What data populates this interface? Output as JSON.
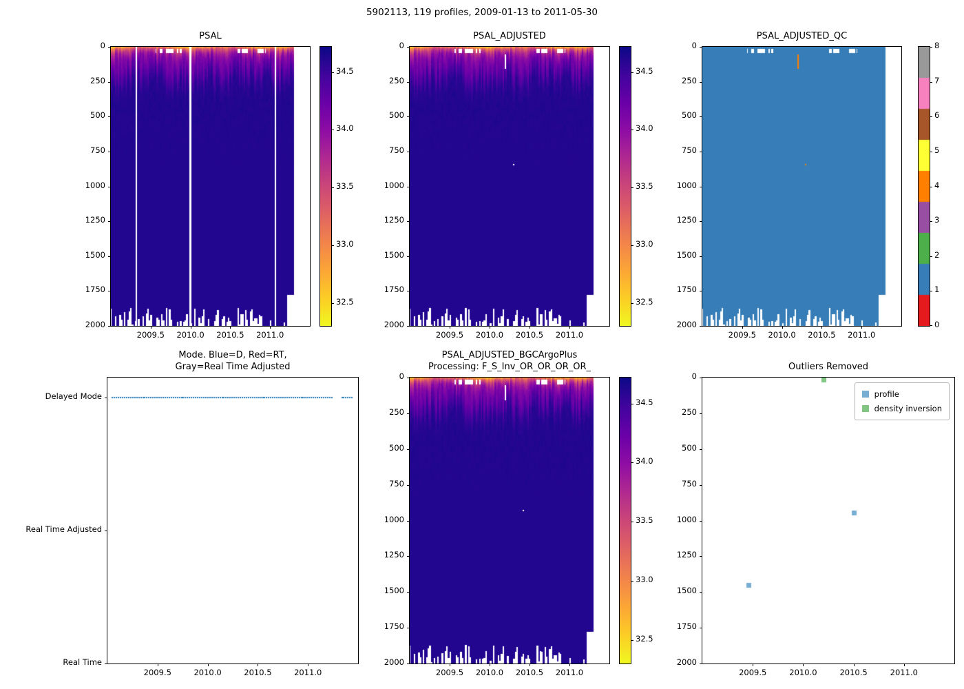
{
  "figure": {
    "title": "5902113, 119 profiles, 2009-01-13 to 2011-05-30",
    "platform_id": "5902113",
    "n_profiles": 119,
    "date_start": "2009-01-13",
    "date_end": "2011-05-30",
    "background_color": "#ffffff"
  },
  "colormaps": {
    "plasma": [
      [
        0.0,
        "#0d0887"
      ],
      [
        0.1,
        "#41049d"
      ],
      [
        0.2,
        "#6a00a8"
      ],
      [
        0.3,
        "#8f0da4"
      ],
      [
        0.4,
        "#b12a90"
      ],
      [
        0.5,
        "#cc4778"
      ],
      [
        0.6,
        "#e16462"
      ],
      [
        0.7,
        "#f2844b"
      ],
      [
        0.8,
        "#fca636"
      ],
      [
        0.9,
        "#fcce25"
      ],
      [
        1.0,
        "#f0f921"
      ]
    ],
    "qc_set1": [
      "#e41a1c",
      "#377eb8",
      "#4daf4a",
      "#984ea3",
      "#ff7f00",
      "#ffff33",
      "#a65628",
      "#f781bf",
      "#999999"
    ]
  },
  "chart_data": [
    {
      "id": "psal",
      "type": "heatmap",
      "title": "PSAL",
      "x_range": [
        2009.0,
        2011.5
      ],
      "x_tick_values": [
        2009.5,
        2010.0,
        2010.5,
        2011.0
      ],
      "x_tick_labels": [
        "2009.5",
        "2010.0",
        "2010.5",
        "2011.0"
      ],
      "y_range": [
        0,
        2000
      ],
      "y_tick_values": [
        0,
        250,
        500,
        750,
        1000,
        1250,
        1500,
        1750,
        2000
      ],
      "y_axis_reversed": true,
      "n_profiles": 119,
      "x_data_end": 2011.3,
      "colorbar": {
        "vmin": 32.3,
        "vmax": 34.72,
        "tick_values": [
          32.5,
          33.0,
          33.5,
          34.0,
          34.5
        ],
        "tick_labels": [
          "32.5",
          "33.0",
          "33.5",
          "34.0",
          "34.5"
        ],
        "colormap": "plasma_r"
      },
      "field_model": {
        "deep_value": 34.62,
        "mid_value": 34.15,
        "surface_value_range": [
          32.42,
          33.45
        ],
        "mixed_layer_depth_range": [
          18,
          55
        ],
        "halocline_depth_range": [
          90,
          280
        ]
      },
      "missing_profile_times": [
        2009.32,
        2010.0,
        2011.07
      ],
      "surface_gap_time_ranges": [
        [
          2009.56,
          2009.92
        ],
        [
          2010.56,
          2010.95
        ]
      ],
      "profile_end_depth_range": [
        1870,
        2000
      ],
      "shallow_end": {
        "time_range": [
          2011.22,
          2011.3
        ],
        "end_depth": 1780
      }
    },
    {
      "id": "psal_adjusted",
      "type": "heatmap",
      "title": "PSAL_ADJUSTED",
      "x_range": [
        2009.0,
        2011.5
      ],
      "x_tick_values": [
        2009.5,
        2010.0,
        2010.5,
        2011.0
      ],
      "x_tick_labels": [
        "2009.5",
        "2010.0",
        "2010.5",
        "2011.0"
      ],
      "y_range": [
        0,
        2000
      ],
      "y_tick_values": [
        0,
        250,
        500,
        750,
        1000,
        1250,
        1500,
        1750,
        2000
      ],
      "y_axis_reversed": true,
      "n_profiles": 119,
      "x_data_end": 2011.3,
      "colorbar": {
        "vmin": 32.3,
        "vmax": 34.72,
        "tick_values": [
          32.5,
          33.0,
          33.5,
          34.0,
          34.5
        ],
        "tick_labels": [
          "32.5",
          "33.0",
          "33.5",
          "34.0",
          "34.5"
        ],
        "colormap": "plasma_r"
      },
      "field_model": {
        "deep_value": 34.62,
        "mid_value": 34.15,
        "surface_value_range": [
          32.42,
          33.45
        ],
        "mixed_layer_depth_range": [
          18,
          55
        ],
        "halocline_depth_range": [
          90,
          280
        ]
      },
      "surface_gap_time_ranges": [
        [
          2009.56,
          2009.92
        ],
        [
          2010.56,
          2010.95
        ]
      ],
      "profile_end_depth_range": [
        1870,
        2000
      ],
      "shallow_end": {
        "time_range": [
          2011.22,
          2011.3
        ],
        "end_depth": 1780
      },
      "marks": [
        {
          "kind": "bar",
          "color": "#ffffff",
          "t": 2010.2,
          "d0": 55,
          "d1": 160,
          "meaning": "masked adjusted values"
        },
        {
          "kind": "dot",
          "color": "#ffffff",
          "t": 2010.3,
          "d": 845,
          "meaning": "masked adjusted value"
        }
      ]
    },
    {
      "id": "psal_adjusted_qc",
      "type": "heatmap",
      "title": "PSAL_ADJUSTED_QC",
      "x_range": [
        2009.0,
        2011.5
      ],
      "x_tick_values": [
        2009.5,
        2010.0,
        2010.5,
        2011.0
      ],
      "x_tick_labels": [
        "2009.5",
        "2010.0",
        "2010.5",
        "2011.0"
      ],
      "y_range": [
        0,
        2000
      ],
      "y_tick_values": [
        0,
        250,
        500,
        750,
        1000,
        1250,
        1500,
        1750,
        2000
      ],
      "y_axis_reversed": true,
      "n_profiles": 119,
      "x_data_end": 2011.3,
      "fill_value": 1,
      "fill_color": "#377eb8",
      "colorbar": {
        "categorical": true,
        "tick_values": [
          0,
          1,
          2,
          3,
          4,
          5,
          6,
          7,
          8
        ],
        "tick_labels": [
          "0",
          "1",
          "2",
          "3",
          "4",
          "5",
          "6",
          "7",
          "8"
        ]
      },
      "surface_gap_time_ranges": [
        [
          2009.56,
          2009.92
        ],
        [
          2010.56,
          2010.95
        ]
      ],
      "profile_end_depth_range": [
        1870,
        2000
      ],
      "shallow_end": {
        "time_range": [
          2011.22,
          2011.3
        ],
        "end_depth": 1780
      },
      "marks": [
        {
          "kind": "bar",
          "color": "#ff7f00",
          "value": 4,
          "t": 2010.2,
          "d0": 55,
          "d1": 160,
          "meaning": "QC flag 4"
        },
        {
          "kind": "dot",
          "color": "#ff7f00",
          "value": 4,
          "t": 2010.3,
          "d": 845,
          "meaning": "QC flag 4"
        }
      ]
    },
    {
      "id": "mode",
      "type": "scatter",
      "title_lines": [
        "Mode. Blue=D, Red=RT,",
        "Gray=Real Time Adjusted"
      ],
      "x_range": [
        2009.0,
        2011.5
      ],
      "x_tick_values": [
        2009.5,
        2010.0,
        2010.5,
        2011.0
      ],
      "x_tick_labels": [
        "2009.5",
        "2010.0",
        "2010.5",
        "2011.0"
      ],
      "y_categories": [
        "Delayed Mode",
        "Real Time Adjusted",
        "Real Time"
      ],
      "y_category_values": [
        2,
        1,
        0
      ],
      "y_lim": [
        0,
        2.15
      ],
      "series": [
        {
          "name": "mode",
          "color": "#1f77b4",
          "value": "Delayed Mode",
          "x_start": 2009.05,
          "x_end": 2011.44,
          "n_points": 119,
          "gap_x": [
            2011.25,
            2011.33
          ]
        }
      ]
    },
    {
      "id": "psal_adjusted_bgc",
      "type": "heatmap",
      "title_lines": [
        "PSAL_ADJUSTED_BGCArgoPlus",
        "Processing: F_S_Inv_OR_OR_OR_OR_"
      ],
      "x_range": [
        2009.0,
        2011.5
      ],
      "x_tick_values": [
        2009.5,
        2010.0,
        2010.5,
        2011.0
      ],
      "x_tick_labels": [
        "2009.5",
        "2010.0",
        "2010.5",
        "2011.0"
      ],
      "y_range": [
        0,
        2000
      ],
      "y_tick_values": [
        0,
        250,
        500,
        750,
        1000,
        1250,
        1500,
        1750,
        2000
      ],
      "y_axis_reversed": true,
      "n_profiles": 119,
      "x_data_end": 2011.3,
      "colorbar": {
        "vmin": 32.3,
        "vmax": 34.72,
        "tick_values": [
          32.5,
          33.0,
          33.5,
          34.0,
          34.5
        ],
        "tick_labels": [
          "32.5",
          "33.0",
          "33.5",
          "34.0",
          "34.5"
        ],
        "colormap": "plasma_r"
      },
      "field_model": {
        "deep_value": 34.62,
        "mid_value": 34.15,
        "surface_value_range": [
          32.42,
          33.45
        ],
        "mixed_layer_depth_range": [
          18,
          55
        ],
        "halocline_depth_range": [
          90,
          280
        ]
      },
      "surface_gap_time_ranges": [
        [
          2009.56,
          2009.92
        ],
        [
          2010.56,
          2010.95
        ]
      ],
      "profile_end_depth_range": [
        1870,
        2000
      ],
      "shallow_end": {
        "time_range": [
          2011.22,
          2011.3
        ],
        "end_depth": 1780
      },
      "marks": [
        {
          "kind": "bar",
          "color": "#ffffff",
          "t": 2010.2,
          "d0": 55,
          "d1": 160,
          "meaning": "removed outlier region"
        },
        {
          "kind": "dot",
          "color": "#ffffff",
          "t": 2010.42,
          "d": 930,
          "meaning": "removed outlier"
        }
      ]
    },
    {
      "id": "outliers_removed",
      "type": "scatter",
      "title": "Outliers Removed",
      "x_range": [
        2009.0,
        2011.5
      ],
      "x_tick_values": [
        2009.5,
        2010.0,
        2010.5,
        2011.0
      ],
      "x_tick_labels": [
        "2009.5",
        "2010.0",
        "2010.5",
        "2011.0"
      ],
      "y_range": [
        0,
        2000
      ],
      "y_tick_values": [
        0,
        250,
        500,
        750,
        1000,
        1250,
        1500,
        1750,
        2000
      ],
      "y_axis_reversed": true,
      "legend": {
        "position": "upper right",
        "items": [
          {
            "label": "profile",
            "color": "#79aed2"
          },
          {
            "label": "density inversion",
            "color": "#80c680"
          }
        ]
      },
      "series": [
        {
          "name": "profile",
          "color": "#79aed2",
          "marker": "square",
          "points": [
            [
              2009.46,
              1450
            ],
            [
              2010.5,
              945
            ]
          ]
        },
        {
          "name": "density inversion",
          "color": "#80c680",
          "marker": "square",
          "points": [
            [
              2010.2,
              15
            ]
          ]
        }
      ]
    }
  ]
}
